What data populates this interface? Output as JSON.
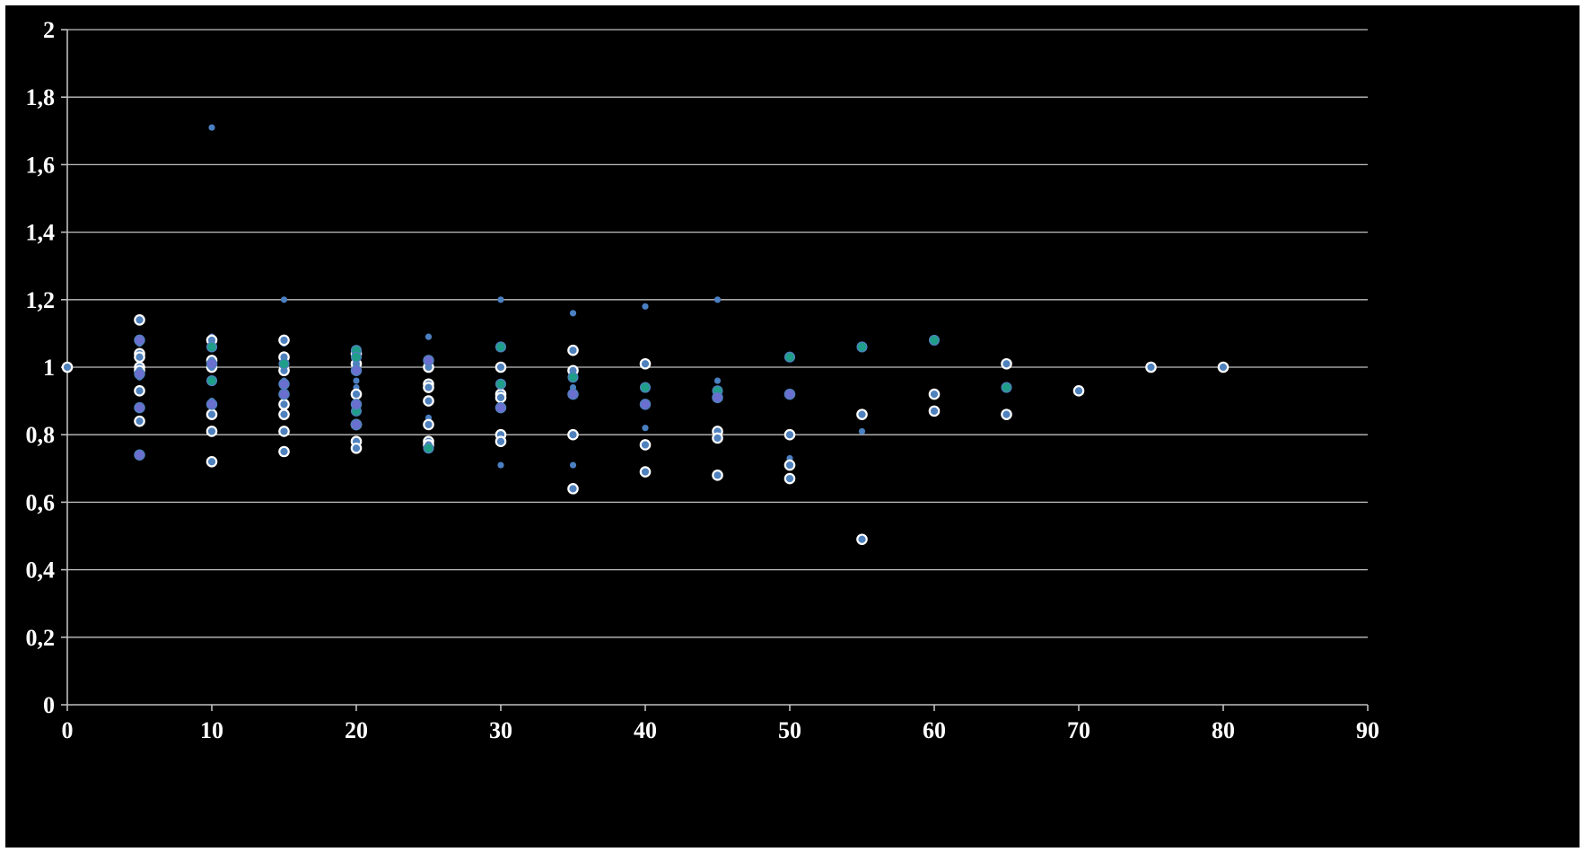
{
  "chart_data": {
    "type": "scatter",
    "title": "",
    "xlabel": "",
    "ylabel": "",
    "xlim": [
      0,
      90
    ],
    "ylim": [
      0,
      2
    ],
    "x_ticks": [
      0,
      10,
      20,
      30,
      40,
      50,
      60,
      70,
      80,
      90
    ],
    "y_ticks": [
      0,
      0.2,
      0.4,
      0.6,
      0.8,
      1,
      1.2,
      1.4,
      1.6,
      1.8,
      2
    ],
    "x_tick_labels": [
      "0",
      "10",
      "20",
      "30",
      "40",
      "50",
      "60",
      "70",
      "80",
      "90"
    ],
    "y_tick_labels": [
      "0",
      "0,2",
      "0,4",
      "0,6",
      "0,8",
      "1",
      "1,2",
      "1,4",
      "1,6",
      "1,8",
      "2"
    ],
    "grid": "horizontal",
    "legend": "none",
    "background": "#000000",
    "series": [
      {
        "marker": "small-dot",
        "color": "#4a7fc1",
        "edge": "none",
        "points": [
          [
            5,
            1.07
          ],
          [
            5,
            0.97
          ],
          [
            10,
            1.71
          ],
          [
            10,
            1.09
          ],
          [
            10,
            0.9
          ],
          [
            10,
            0.88
          ],
          [
            15,
            1.2
          ],
          [
            15,
            1.07
          ],
          [
            15,
            0.96
          ],
          [
            20,
            0.96
          ],
          [
            20,
            0.94
          ],
          [
            25,
            1.09
          ],
          [
            25,
            0.85
          ],
          [
            30,
            1.2
          ],
          [
            30,
            0.71
          ],
          [
            35,
            1.16
          ],
          [
            35,
            0.94
          ],
          [
            35,
            0.71
          ],
          [
            40,
            1.18
          ],
          [
            40,
            0.82
          ],
          [
            45,
            1.2
          ],
          [
            45,
            0.96
          ],
          [
            50,
            0.73
          ],
          [
            55,
            0.81
          ]
        ]
      },
      {
        "marker": "white-ring",
        "color": "#4f81bd",
        "edge": "#ffffff",
        "points": [
          [
            0,
            1
          ],
          [
            5,
            1.14
          ],
          [
            5,
            1.04
          ],
          [
            5,
            1.03
          ],
          [
            5,
            1
          ],
          [
            5,
            0.99
          ],
          [
            5,
            0.93
          ],
          [
            5,
            0.84
          ],
          [
            10,
            1.08
          ],
          [
            10,
            1.02
          ],
          [
            10,
            1
          ],
          [
            10,
            0.86
          ],
          [
            10,
            0.81
          ],
          [
            10,
            0.72
          ],
          [
            15,
            1.08
          ],
          [
            15,
            1.03
          ],
          [
            15,
            0.99
          ],
          [
            15,
            0.89
          ],
          [
            15,
            0.86
          ],
          [
            15,
            0.81
          ],
          [
            15,
            0.75
          ],
          [
            20,
            1.04
          ],
          [
            20,
            1.01
          ],
          [
            20,
            0.92
          ],
          [
            20,
            0.83
          ],
          [
            20,
            0.78
          ],
          [
            20,
            0.76
          ],
          [
            25,
            1
          ],
          [
            25,
            0.95
          ],
          [
            25,
            0.94
          ],
          [
            25,
            0.9
          ],
          [
            25,
            0.83
          ],
          [
            25,
            0.78
          ],
          [
            25,
            0.77
          ],
          [
            30,
            1
          ],
          [
            30,
            0.92
          ],
          [
            30,
            0.91
          ],
          [
            30,
            0.8
          ],
          [
            30,
            0.78
          ],
          [
            35,
            1.05
          ],
          [
            35,
            0.99
          ],
          [
            35,
            0.8
          ],
          [
            35,
            0.64
          ],
          [
            40,
            1.01
          ],
          [
            40,
            0.77
          ],
          [
            40,
            0.69
          ],
          [
            45,
            0.81
          ],
          [
            45,
            0.79
          ],
          [
            45,
            0.68
          ],
          [
            50,
            0.8
          ],
          [
            50,
            0.71
          ],
          [
            50,
            0.67
          ],
          [
            55,
            0.86
          ],
          [
            55,
            0.49
          ],
          [
            60,
            0.92
          ],
          [
            60,
            0.87
          ],
          [
            65,
            1.01
          ],
          [
            65,
            0.86
          ],
          [
            70,
            0.93
          ],
          [
            75,
            1
          ],
          [
            80,
            1
          ]
        ]
      },
      {
        "marker": "teal-dot",
        "color": "#1f9e89",
        "edge": "#4f81bd",
        "points": [
          [
            10,
            1.06
          ],
          [
            10,
            0.96
          ],
          [
            15,
            1.01
          ],
          [
            20,
            1.05
          ],
          [
            20,
            1.03
          ],
          [
            20,
            0.87
          ],
          [
            25,
            0.76
          ],
          [
            30,
            1.06
          ],
          [
            30,
            0.95
          ],
          [
            35,
            0.97
          ],
          [
            40,
            0.94
          ],
          [
            45,
            0.93
          ],
          [
            50,
            1.03
          ],
          [
            55,
            1.06
          ],
          [
            60,
            1.08
          ],
          [
            65,
            0.94
          ]
        ]
      },
      {
        "marker": "violet-dot",
        "color": "#6a6fd0",
        "edge": "#4f81bd",
        "points": [
          [
            5,
            1.08
          ],
          [
            5,
            0.98
          ],
          [
            5,
            0.88
          ],
          [
            5,
            0.74
          ],
          [
            10,
            1.01
          ],
          [
            10,
            0.89
          ],
          [
            15,
            0.95
          ],
          [
            15,
            0.92
          ],
          [
            20,
            0.99
          ],
          [
            20,
            0.89
          ],
          [
            20,
            0.83
          ],
          [
            25,
            1.02
          ],
          [
            30,
            0.88
          ],
          [
            35,
            0.92
          ],
          [
            40,
            0.89
          ],
          [
            45,
            0.91
          ],
          [
            50,
            0.92
          ]
        ]
      }
    ]
  }
}
